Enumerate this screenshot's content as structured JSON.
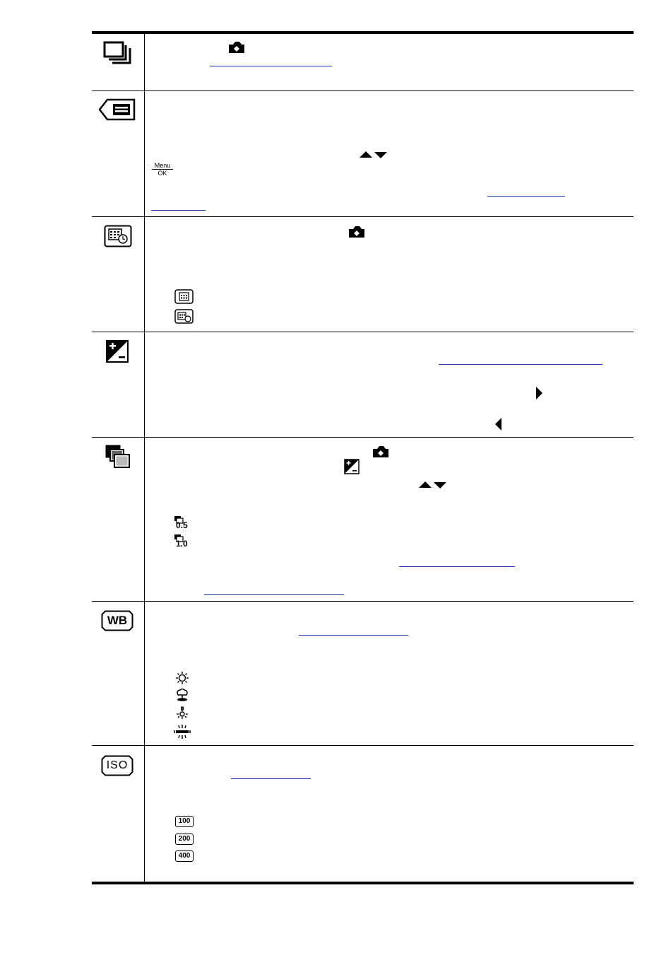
{
  "document": {
    "menu_key": {
      "top": "Menu",
      "bottom": "OK"
    },
    "iso_options": [
      "100",
      "200",
      "400"
    ],
    "burst_options": [
      "0.5",
      "1.0"
    ],
    "labels": {
      "wb": "WB",
      "iso": "ISO"
    }
  }
}
